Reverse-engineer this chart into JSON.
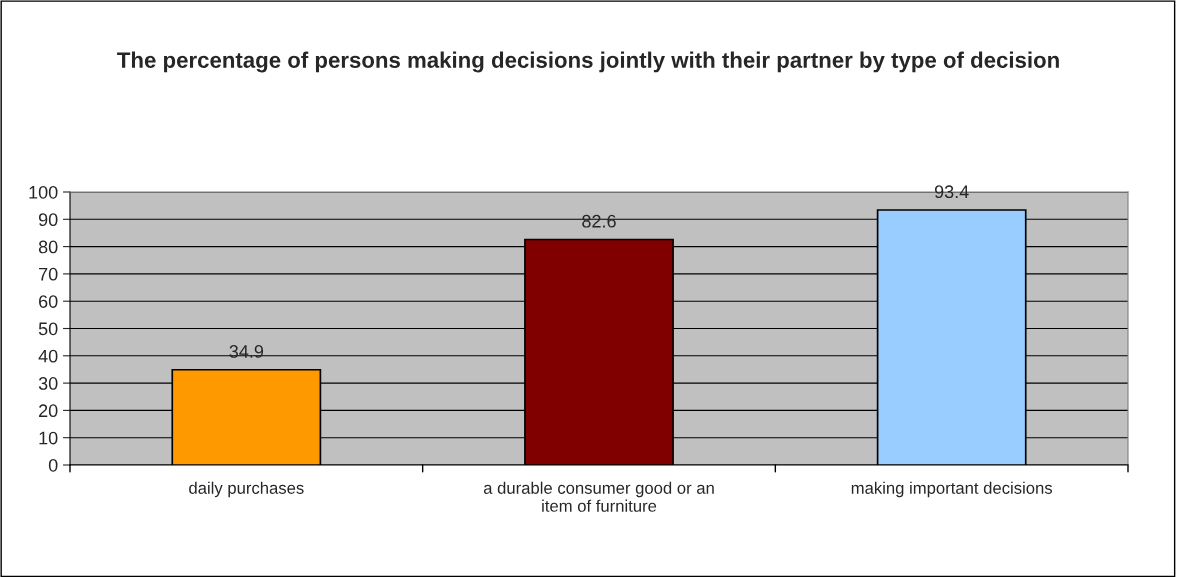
{
  "chart_data": {
    "type": "bar",
    "title": "The percentage of persons making decisions jointly with their partner by type of decision",
    "categories": [
      "daily purchases",
      "a durable consumer good or an item of furniture",
      "making important decisions"
    ],
    "values": [
      34.9,
      82.6,
      93.4
    ],
    "colors": [
      "#ff9900",
      "#800000",
      "#99ccff"
    ],
    "ylim": [
      0,
      100
    ],
    "yticks": [
      0,
      10,
      20,
      30,
      40,
      50,
      60,
      70,
      80,
      90,
      100
    ],
    "grid": "y",
    "data_labels": true
  }
}
